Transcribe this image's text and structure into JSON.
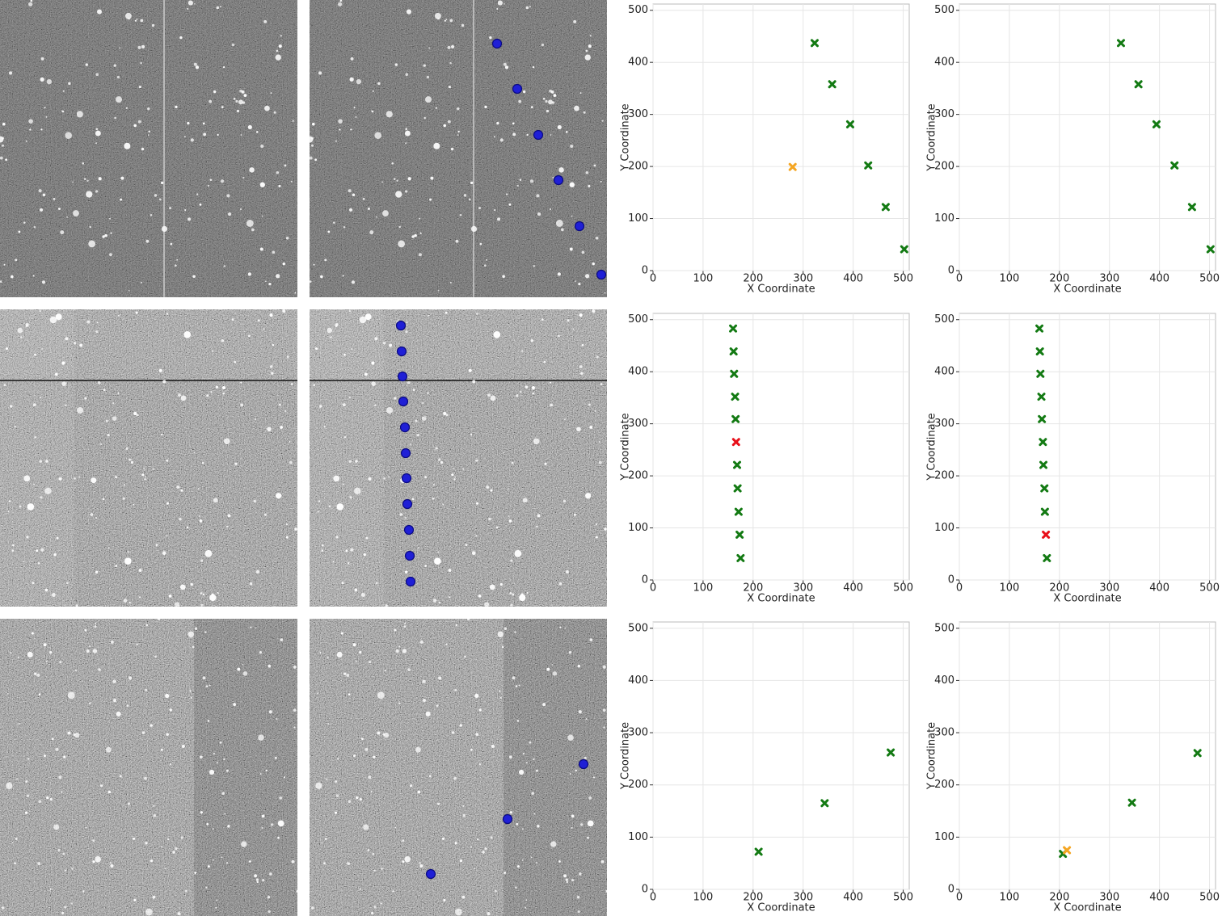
{
  "chart_data": [
    {
      "type": "scatter",
      "xlabel": "X Coordinate",
      "ylabel": "Y Coordinate",
      "xlim": [
        0,
        512
      ],
      "ylim": [
        0,
        512
      ],
      "xticks": [
        0,
        100,
        200,
        300,
        400,
        500
      ],
      "yticks": [
        0,
        100,
        200,
        300,
        400,
        500
      ],
      "grid": true,
      "series": [
        {
          "color": "#137a13",
          "x": [
            323,
            358,
            394,
            430,
            465,
            502
          ],
          "values": [
            437,
            358,
            281,
            202,
            122,
            41
          ]
        },
        {
          "color": "#f5a623",
          "x": [
            279
          ],
          "values": [
            199
          ]
        }
      ]
    },
    {
      "type": "scatter",
      "xlabel": "X Coordinate",
      "ylabel": "Y Coordinate",
      "xlim": [
        0,
        512
      ],
      "ylim": [
        0,
        512
      ],
      "xticks": [
        0,
        100,
        200,
        300,
        400,
        500
      ],
      "yticks": [
        0,
        100,
        200,
        300,
        400,
        500
      ],
      "grid": true,
      "series": [
        {
          "color": "#137a13",
          "x": [
            323,
            358,
            394,
            430,
            465,
            502
          ],
          "values": [
            437,
            358,
            281,
            202,
            122,
            41
          ]
        }
      ]
    },
    {
      "type": "scatter",
      "xlabel": "X Coordinate",
      "ylabel": "Y Coordinate",
      "xlim": [
        0,
        512
      ],
      "ylim": [
        0,
        512
      ],
      "xticks": [
        0,
        100,
        200,
        300,
        400,
        500
      ],
      "yticks": [
        0,
        100,
        200,
        300,
        400,
        500
      ],
      "grid": true,
      "series": [
        {
          "color": "#137a13",
          "x": [
            160,
            161,
            162,
            164,
            165,
            168,
            169,
            171,
            173,
            175
          ],
          "values": [
            483,
            439,
            396,
            352,
            309,
            221,
            176,
            131,
            87,
            42
          ]
        },
        {
          "color": "#e8101a",
          "x": [
            166
          ],
          "values": [
            265
          ]
        }
      ]
    },
    {
      "type": "scatter",
      "xlabel": "X Coordinate",
      "ylabel": "Y Coordinate",
      "xlim": [
        0,
        512
      ],
      "ylim": [
        0,
        512
      ],
      "xticks": [
        0,
        100,
        200,
        300,
        400,
        500
      ],
      "yticks": [
        0,
        100,
        200,
        300,
        400,
        500
      ],
      "grid": true,
      "series": [
        {
          "color": "#137a13",
          "x": [
            160,
            161,
            162,
            164,
            165,
            167,
            168,
            170,
            171,
            175
          ],
          "values": [
            483,
            439,
            396,
            352,
            309,
            265,
            221,
            176,
            131,
            42
          ]
        },
        {
          "color": "#e8101a",
          "x": [
            173
          ],
          "values": [
            87
          ]
        }
      ]
    },
    {
      "type": "scatter",
      "xlabel": "X Coordinate",
      "ylabel": "Y Coordinate",
      "xlim": [
        0,
        512
      ],
      "ylim": [
        0,
        512
      ],
      "xticks": [
        0,
        100,
        200,
        300,
        400,
        500
      ],
      "yticks": [
        0,
        100,
        200,
        300,
        400,
        500
      ],
      "grid": true,
      "series": [
        {
          "color": "#137a13",
          "x": [
            211,
            343,
            475
          ],
          "values": [
            72,
            165,
            262
          ]
        }
      ]
    },
    {
      "type": "scatter",
      "xlabel": "X Coordinate",
      "ylabel": "Y Coordinate",
      "xlim": [
        0,
        512
      ],
      "ylim": [
        0,
        512
      ],
      "xticks": [
        0,
        100,
        200,
        300,
        400,
        500
      ],
      "yticks": [
        0,
        100,
        200,
        300,
        400,
        500
      ],
      "grid": true,
      "series": [
        {
          "color": "#137a13",
          "x": [
            207,
            345,
            476
          ],
          "values": [
            68,
            166,
            261
          ]
        },
        {
          "color": "#f5a623",
          "x": [
            215
          ],
          "values": [
            75
          ]
        }
      ]
    }
  ]
}
